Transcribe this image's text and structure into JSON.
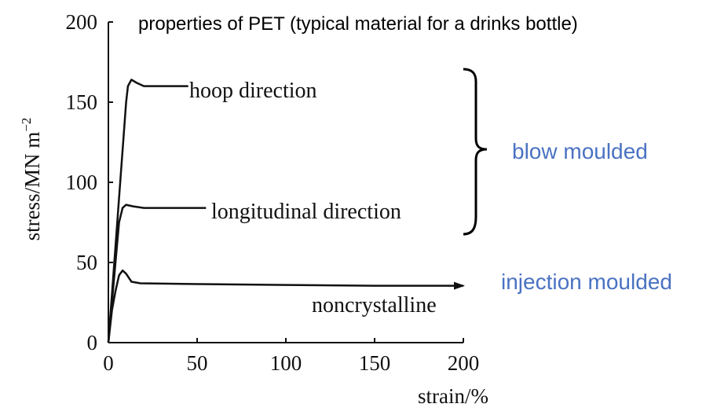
{
  "chart_data": {
    "type": "line",
    "title": "properties of PET (typical material for a drinks bottle)",
    "xlabel": "strain/%",
    "ylabel": "stress/MN m",
    "ylabel_exponent": "−2",
    "xlim": [
      0,
      200
    ],
    "ylim": [
      0,
      200
    ],
    "x_ticks": [
      "0",
      "50",
      "100",
      "150",
      "200"
    ],
    "y_ticks": [
      "0",
      "50",
      "100",
      "150",
      "200"
    ],
    "grid": false,
    "series": [
      {
        "name": "hoop direction",
        "points": [
          [
            0,
            0
          ],
          [
            10,
            150
          ],
          [
            11,
            160
          ],
          [
            13,
            164
          ],
          [
            16,
            162
          ],
          [
            20,
            160
          ],
          [
            45,
            160
          ]
        ]
      },
      {
        "name": "longitudinal direction",
        "points": [
          [
            0,
            0
          ],
          [
            6,
            75
          ],
          [
            8,
            84
          ],
          [
            10,
            86
          ],
          [
            14,
            85
          ],
          [
            20,
            84
          ],
          [
            55,
            84
          ]
        ]
      },
      {
        "name": "noncrystalline",
        "points": [
          [
            0,
            0
          ],
          [
            2,
            20
          ],
          [
            4,
            32
          ],
          [
            6,
            42
          ],
          [
            8,
            45
          ],
          [
            10,
            43
          ],
          [
            13,
            38
          ],
          [
            18,
            37
          ],
          [
            50,
            36.5
          ],
          [
            100,
            36
          ],
          [
            150,
            35.5
          ],
          [
            200,
            35.5
          ]
        ],
        "arrow": true
      }
    ],
    "annotations": [
      {
        "text": "blow moulded",
        "applies_to": [
          "hoop direction",
          "longitudinal direction"
        ]
      },
      {
        "text": "injection moulded",
        "applies_to": [
          "noncrystalline"
        ]
      }
    ]
  }
}
